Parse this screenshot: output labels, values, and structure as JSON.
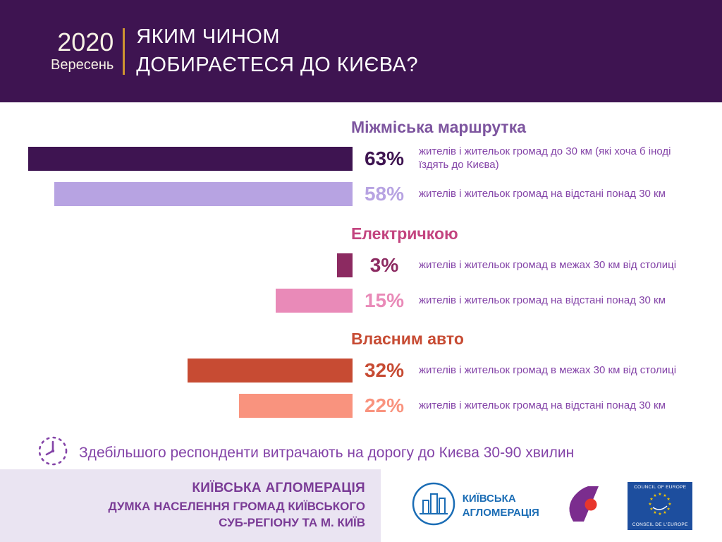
{
  "header": {
    "year": "2020",
    "month": "Вересень",
    "title_line1": "ЯКИМ ЧИНОМ",
    "title_line2": "ДОБИРАЄТЕСЯ ДО КИЄВА?"
  },
  "chart_data": {
    "type": "bar",
    "orientation": "horizontal",
    "unit": "%",
    "xlim": [
      0,
      68
    ],
    "title": "Яким чином добираєтеся до Києва?",
    "groups": [
      {
        "label": "Міжміська маршрутка",
        "label_color": "#7d559f",
        "bars": [
          {
            "value": 63,
            "label": "63%",
            "color": "#3e1451",
            "description": "жителів і жительок громад до 30 км (які хоча б іноді їздять до Києва)"
          },
          {
            "value": 58,
            "label": "58%",
            "color": "#b7a3e2",
            "description": "жителів і жительок громад на відстані понад 30 км"
          }
        ]
      },
      {
        "label": "Електричкою",
        "label_color": "#c3447f",
        "bars": [
          {
            "value": 3,
            "label": "3%",
            "color": "#8c2a61",
            "description": "жителів і жительок громад в межах 30 км від столиці"
          },
          {
            "value": 15,
            "label": "15%",
            "color": "#e98ab8",
            "description": "жителів і жительок громад на відстані понад 30 км"
          }
        ]
      },
      {
        "label": "Власним авто",
        "label_color": "#c74b33",
        "bars": [
          {
            "value": 32,
            "label": "32%",
            "color": "#c74b33",
            "description": "жителів і жительок громад в межах 30 км від столиці"
          },
          {
            "value": 22,
            "label": "22%",
            "color": "#f9937e",
            "description": "жителів і жительок громад на відстані понад 30 км"
          }
        ]
      }
    ]
  },
  "note": {
    "text": "Здебільшого респонденти витрачають на дорогу до Києва 30-90 хвилин"
  },
  "footer": {
    "org_title": "КИЇВСЬКА АГЛОМЕРАЦІЯ",
    "subtitle_line1": "ДУМКА НАСЕЛЕННЯ ГРОМАД КИЇВСЬКОГО",
    "subtitle_line2": "СУБ-РЕГІОНУ ТА М. КИЇВ",
    "logo_agglomeration": {
      "line1": "КИЇВСЬКА",
      "line2": "АГЛОМЕРАЦІЯ"
    },
    "logo_coe": {
      "top": "COUNCIL OF EUROPE",
      "bottom": "CONSEIL DE L'EUROPE"
    }
  },
  "colors": {
    "header_bg": "#3e1451",
    "gold_divider": "#cf9430",
    "description_text": "#8444a8",
    "footer_band": "#eae4f2",
    "footer_text": "#7a3b96",
    "agglomeration_blue": "#1b6db5",
    "coe_blue": "#1d4e9e",
    "stars_gold": "#f7c800",
    "partner_purple": "#7b2d8e",
    "partner_red": "#e8362d"
  }
}
